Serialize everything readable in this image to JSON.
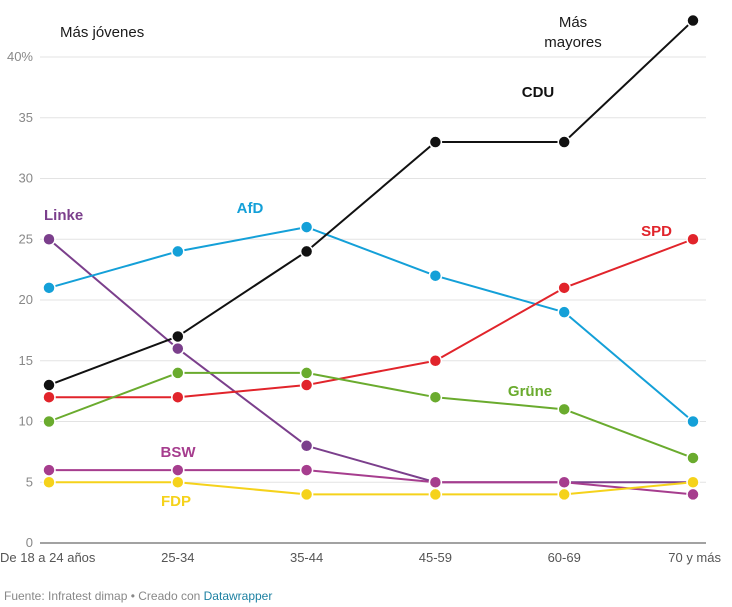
{
  "chart_data": {
    "type": "line",
    "categories": [
      "De 18 a 24 años",
      "25-34",
      "35-44",
      "45-59",
      "60-69",
      "70 y más"
    ],
    "ylim": [
      0,
      40
    ],
    "yticks": [
      0,
      5,
      10,
      15,
      20,
      25,
      30,
      35,
      40
    ],
    "ytick_labels": [
      "0",
      "5",
      "10",
      "15",
      "20",
      "25",
      "30",
      "35",
      "40%"
    ],
    "grid": true,
    "annotations": {
      "left": "Más jóvenes",
      "right_line1": "Más",
      "right_line2": "mayores"
    },
    "series": [
      {
        "name": "Linke",
        "color": "#7b3f8c",
        "values": [
          25,
          16,
          8,
          5,
          5,
          5
        ]
      },
      {
        "name": "AfD",
        "color": "#14a0d8",
        "values": [
          21,
          24,
          26,
          22,
          19,
          10
        ]
      },
      {
        "name": "SPD",
        "color": "#e1242b",
        "values": [
          12,
          12,
          13,
          15,
          21,
          25
        ]
      },
      {
        "name": "Grüne",
        "color": "#6aab2e",
        "values": [
          10,
          14,
          14,
          12,
          11,
          7
        ]
      },
      {
        "name": "BSW",
        "color": "#a63d8e",
        "values": [
          6,
          6,
          6,
          5,
          5,
          4
        ]
      },
      {
        "name": "FDP",
        "color": "#f5d21b",
        "values": [
          5,
          5,
          4,
          4,
          4,
          5
        ]
      },
      {
        "name": "CDU",
        "color": "#111111",
        "values": [
          13,
          17,
          24,
          33,
          33,
          43
        ]
      }
    ]
  },
  "footer": {
    "source": "Fuente: Infratest dimap • Creado con ",
    "link": "Datawrapper"
  }
}
